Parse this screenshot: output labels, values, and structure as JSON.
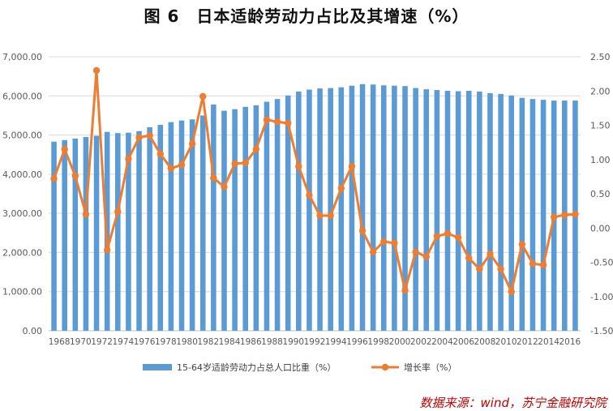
{
  "title": "图 6　日本适龄劳动力占比及其增速（%）",
  "source": "数据来源：wind，苏宁金融研究院",
  "chart_data": {
    "type": "bar",
    "categories": [
      "1968",
      "1969",
      "1970",
      "1971",
      "1972",
      "1973",
      "1974",
      "1975",
      "1976",
      "1977",
      "1978",
      "1979",
      "1980",
      "1981",
      "1982",
      "1983",
      "1984",
      "1985",
      "1986",
      "1987",
      "1988",
      "1989",
      "1990",
      "1991",
      "1992",
      "1993",
      "1994",
      "1995",
      "1996",
      "1997",
      "1998",
      "1999",
      "2000",
      "2001",
      "2002",
      "2003",
      "2004",
      "2005",
      "2006",
      "2007",
      "2008",
      "2009",
      "2010",
      "2011",
      "2012",
      "2013",
      "2014",
      "2015",
      "2016",
      "2017"
    ],
    "x_tick_labels": [
      "1968",
      "1970",
      "1972",
      "1974",
      "1976",
      "1978",
      "1980",
      "1982",
      "1984",
      "1986",
      "1988",
      "1990",
      "1992",
      "1994",
      "1996",
      "1998",
      "2000",
      "2002",
      "2004",
      "2006",
      "2008",
      "2010",
      "2012",
      "2014",
      "2016"
    ],
    "series": [
      {
        "name": "15-64岁适龄劳动力占总人口比重（%）",
        "type": "bar",
        "axis": "left",
        "color": "#5b9bd5",
        "values": [
          4830,
          4870,
          4910,
          4950,
          4980,
          5080,
          5050,
          5060,
          5100,
          5200,
          5260,
          5330,
          5370,
          5400,
          5500,
          5780,
          5620,
          5660,
          5720,
          5760,
          5850,
          5920,
          6010,
          6110,
          6160,
          6190,
          6200,
          6220,
          6260,
          6300,
          6290,
          6270,
          6260,
          6250,
          6200,
          6170,
          6150,
          6130,
          6120,
          6130,
          6110,
          6070,
          6050,
          6010,
          5950,
          5920,
          5900,
          5880,
          5880,
          5880
        ]
      },
      {
        "name": "增长率（%）",
        "type": "line",
        "axis": "right",
        "color": "#ed7d31",
        "values": [
          0.72,
          1.15,
          0.76,
          0.2,
          2.3,
          -0.32,
          0.24,
          1.01,
          1.32,
          1.35,
          1.08,
          0.87,
          0.92,
          1.23,
          1.92,
          0.73,
          0.6,
          0.94,
          0.95,
          1.15,
          1.58,
          1.55,
          1.53,
          0.9,
          0.48,
          0.18,
          0.18,
          0.58,
          0.9,
          -0.04,
          -0.35,
          -0.2,
          -0.22,
          -0.91,
          -0.35,
          -0.42,
          -0.12,
          -0.08,
          -0.14,
          -0.44,
          -0.6,
          -0.38,
          -0.6,
          -0.93,
          -0.24,
          -0.52,
          -0.54,
          0.16,
          0.19,
          0.2
        ]
      }
    ],
    "left_axis": {
      "min": 0,
      "max": 7000,
      "step": 1000,
      "tick_labels": [
        "0.00",
        "1,000.00",
        "2,000.00",
        "3,000.00",
        "4,000.00",
        "5,000.00",
        "6,000.00",
        "7,000.00"
      ]
    },
    "right_axis": {
      "min": -1.5,
      "max": 2.5,
      "step": 0.5,
      "tick_labels": [
        "-1.50",
        "-1.00",
        "-0.50",
        "0.00",
        "0.50",
        "1.00",
        "1.50",
        "2.00",
        "2.50"
      ]
    },
    "grid": true,
    "legend_position": "bottom"
  }
}
